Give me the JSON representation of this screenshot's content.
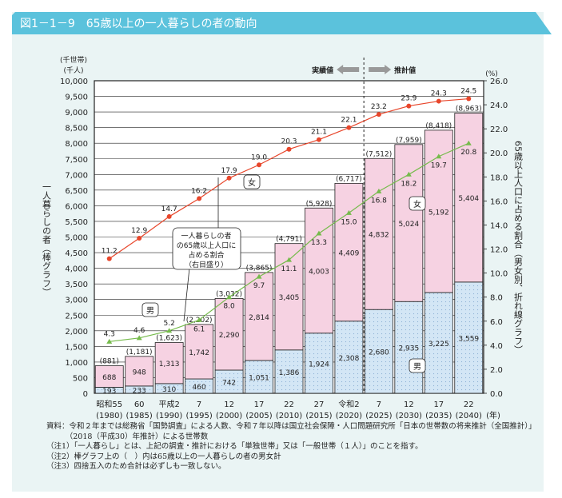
{
  "title": "図1－1－9　65歳以上の一人暮らしの者の動向",
  "chart_data": {
    "type": "bar+line",
    "categories": [
      {
        "era": "昭和55",
        "year": "(1980)"
      },
      {
        "era": "60",
        "year": "(1985)"
      },
      {
        "era": "平成2",
        "year": "(1990)"
      },
      {
        "era": "7",
        "year": "(1995)"
      },
      {
        "era": "12",
        "year": "(2000)"
      },
      {
        "era": "17",
        "year": "(2005)"
      },
      {
        "era": "22",
        "year": "(2010)"
      },
      {
        "era": "27",
        "year": "(2015)"
      },
      {
        "era": "令和2",
        "year": "(2020)"
      },
      {
        "era": "7",
        "year": "(2025)"
      },
      {
        "era": "12",
        "year": "(2030)"
      },
      {
        "era": "17",
        "year": "(2035)"
      },
      {
        "era": "22",
        "year": "(2040)"
      }
    ],
    "x_unit": "(年)",
    "bars": {
      "stacked": true,
      "male": [
        193,
        233,
        310,
        460,
        742,
        1051,
        1386,
        1924,
        2308,
        2680,
        2935,
        3225,
        3559
      ],
      "female": [
        688,
        948,
        1313,
        1742,
        2290,
        2814,
        3405,
        4003,
        4409,
        4832,
        5024,
        5192,
        5404
      ],
      "totals": [
        "(881)",
        "(1,181)",
        "(1,623)",
        "(2,202)",
        "(3,032)",
        "(3,865)",
        "(4,791)",
        "(5,928)",
        "(6,717)",
        "(7,512)",
        "(7,959)",
        "(8,418)",
        "(8,963)"
      ]
    },
    "lines": {
      "male": [
        4.3,
        4.6,
        5.2,
        6.1,
        8.0,
        9.7,
        11.1,
        13.3,
        15.0,
        16.8,
        18.2,
        19.7,
        20.8
      ],
      "female": [
        11.2,
        12.9,
        14.7,
        16.2,
        17.9,
        19.0,
        20.3,
        21.1,
        22.1,
        23.2,
        23.9,
        24.3,
        24.5
      ]
    },
    "left_axis": {
      "unit1": "(千世帯)",
      "unit2": "(千人)",
      "label": "一人暮らしの者（棒グラフ）",
      "range": [
        0,
        10000
      ],
      "step": 500,
      "ticks": [
        "0",
        "500",
        "1,000",
        "1,500",
        "2,000",
        "2,500",
        "3,000",
        "3,500",
        "4,000",
        "4,500",
        "5,000",
        "5,500",
        "6,000",
        "6,500",
        "7,000",
        "7,500",
        "8,000",
        "8,500",
        "9,000",
        "9,500",
        "10,000"
      ]
    },
    "right_axis": {
      "unit": "(%)",
      "label": "65歳以上人口に占める割合（男女別、折れ線グラフ）",
      "range": [
        0,
        26
      ],
      "step": 2,
      "ticks": [
        "0.0",
        "2.0",
        "4.0",
        "6.0",
        "8.0",
        "10.0",
        "12.0",
        "14.0",
        "16.0",
        "18.0",
        "20.0",
        "22.0",
        "24.0",
        "26.0"
      ]
    },
    "grid": true,
    "actual_label": "実績値",
    "projected_label": "推計値",
    "label_female": "女",
    "label_male": "男",
    "callout": [
      "一人暮らしの者",
      "の65歳以上人口に",
      "占める割合",
      "（右目盛り）"
    ],
    "colors": {
      "female_bar": "#f6d2e2",
      "male_bar": "#d3e6f5",
      "female_line": "#e8462b",
      "male_line": "#76bb4c",
      "header": "#5bc2dc",
      "panel": "#eaf4f4"
    }
  },
  "notes": [
    "資料：令和２年までは総務省「国勢調査」による人数、令和７年以降は国立社会保障・人口問題研究所「日本の世帯数の将来推計（全国推計）」",
    "　　　（2018（平成30）年推計）による世帯数",
    "（注1）「一人暮らし」とは、上記の調査・推計における「単独世帯」又は「一般世帯（１人）」のことを指す。",
    "（注2）棒グラフ上の（　）内は65歳以上の一人暮らしの者の男女計",
    "（注3）四捨五入のため合計は必ずしも一致しない。"
  ]
}
